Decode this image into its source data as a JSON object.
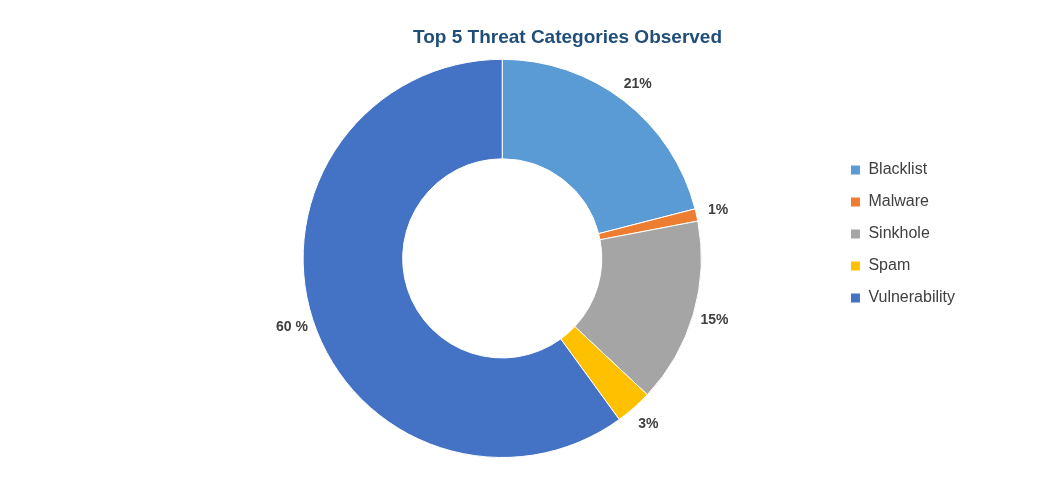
{
  "chart_data": {
    "type": "donut",
    "title": "Top 5 Threat Categories Observed",
    "categories": [
      "Blacklist",
      "Malware",
      "Sinkhole",
      "Spam",
      "Vulnerability"
    ],
    "values": [
      21,
      1,
      15,
      3,
      60
    ],
    "colors": [
      "#5b9bd5",
      "#ed7d31",
      "#a5a5a5",
      "#ffc000",
      "#4472c4"
    ],
    "value_labels": [
      "21%",
      "1%",
      "15%",
      "3%",
      "60 %"
    ],
    "legend": "right"
  }
}
